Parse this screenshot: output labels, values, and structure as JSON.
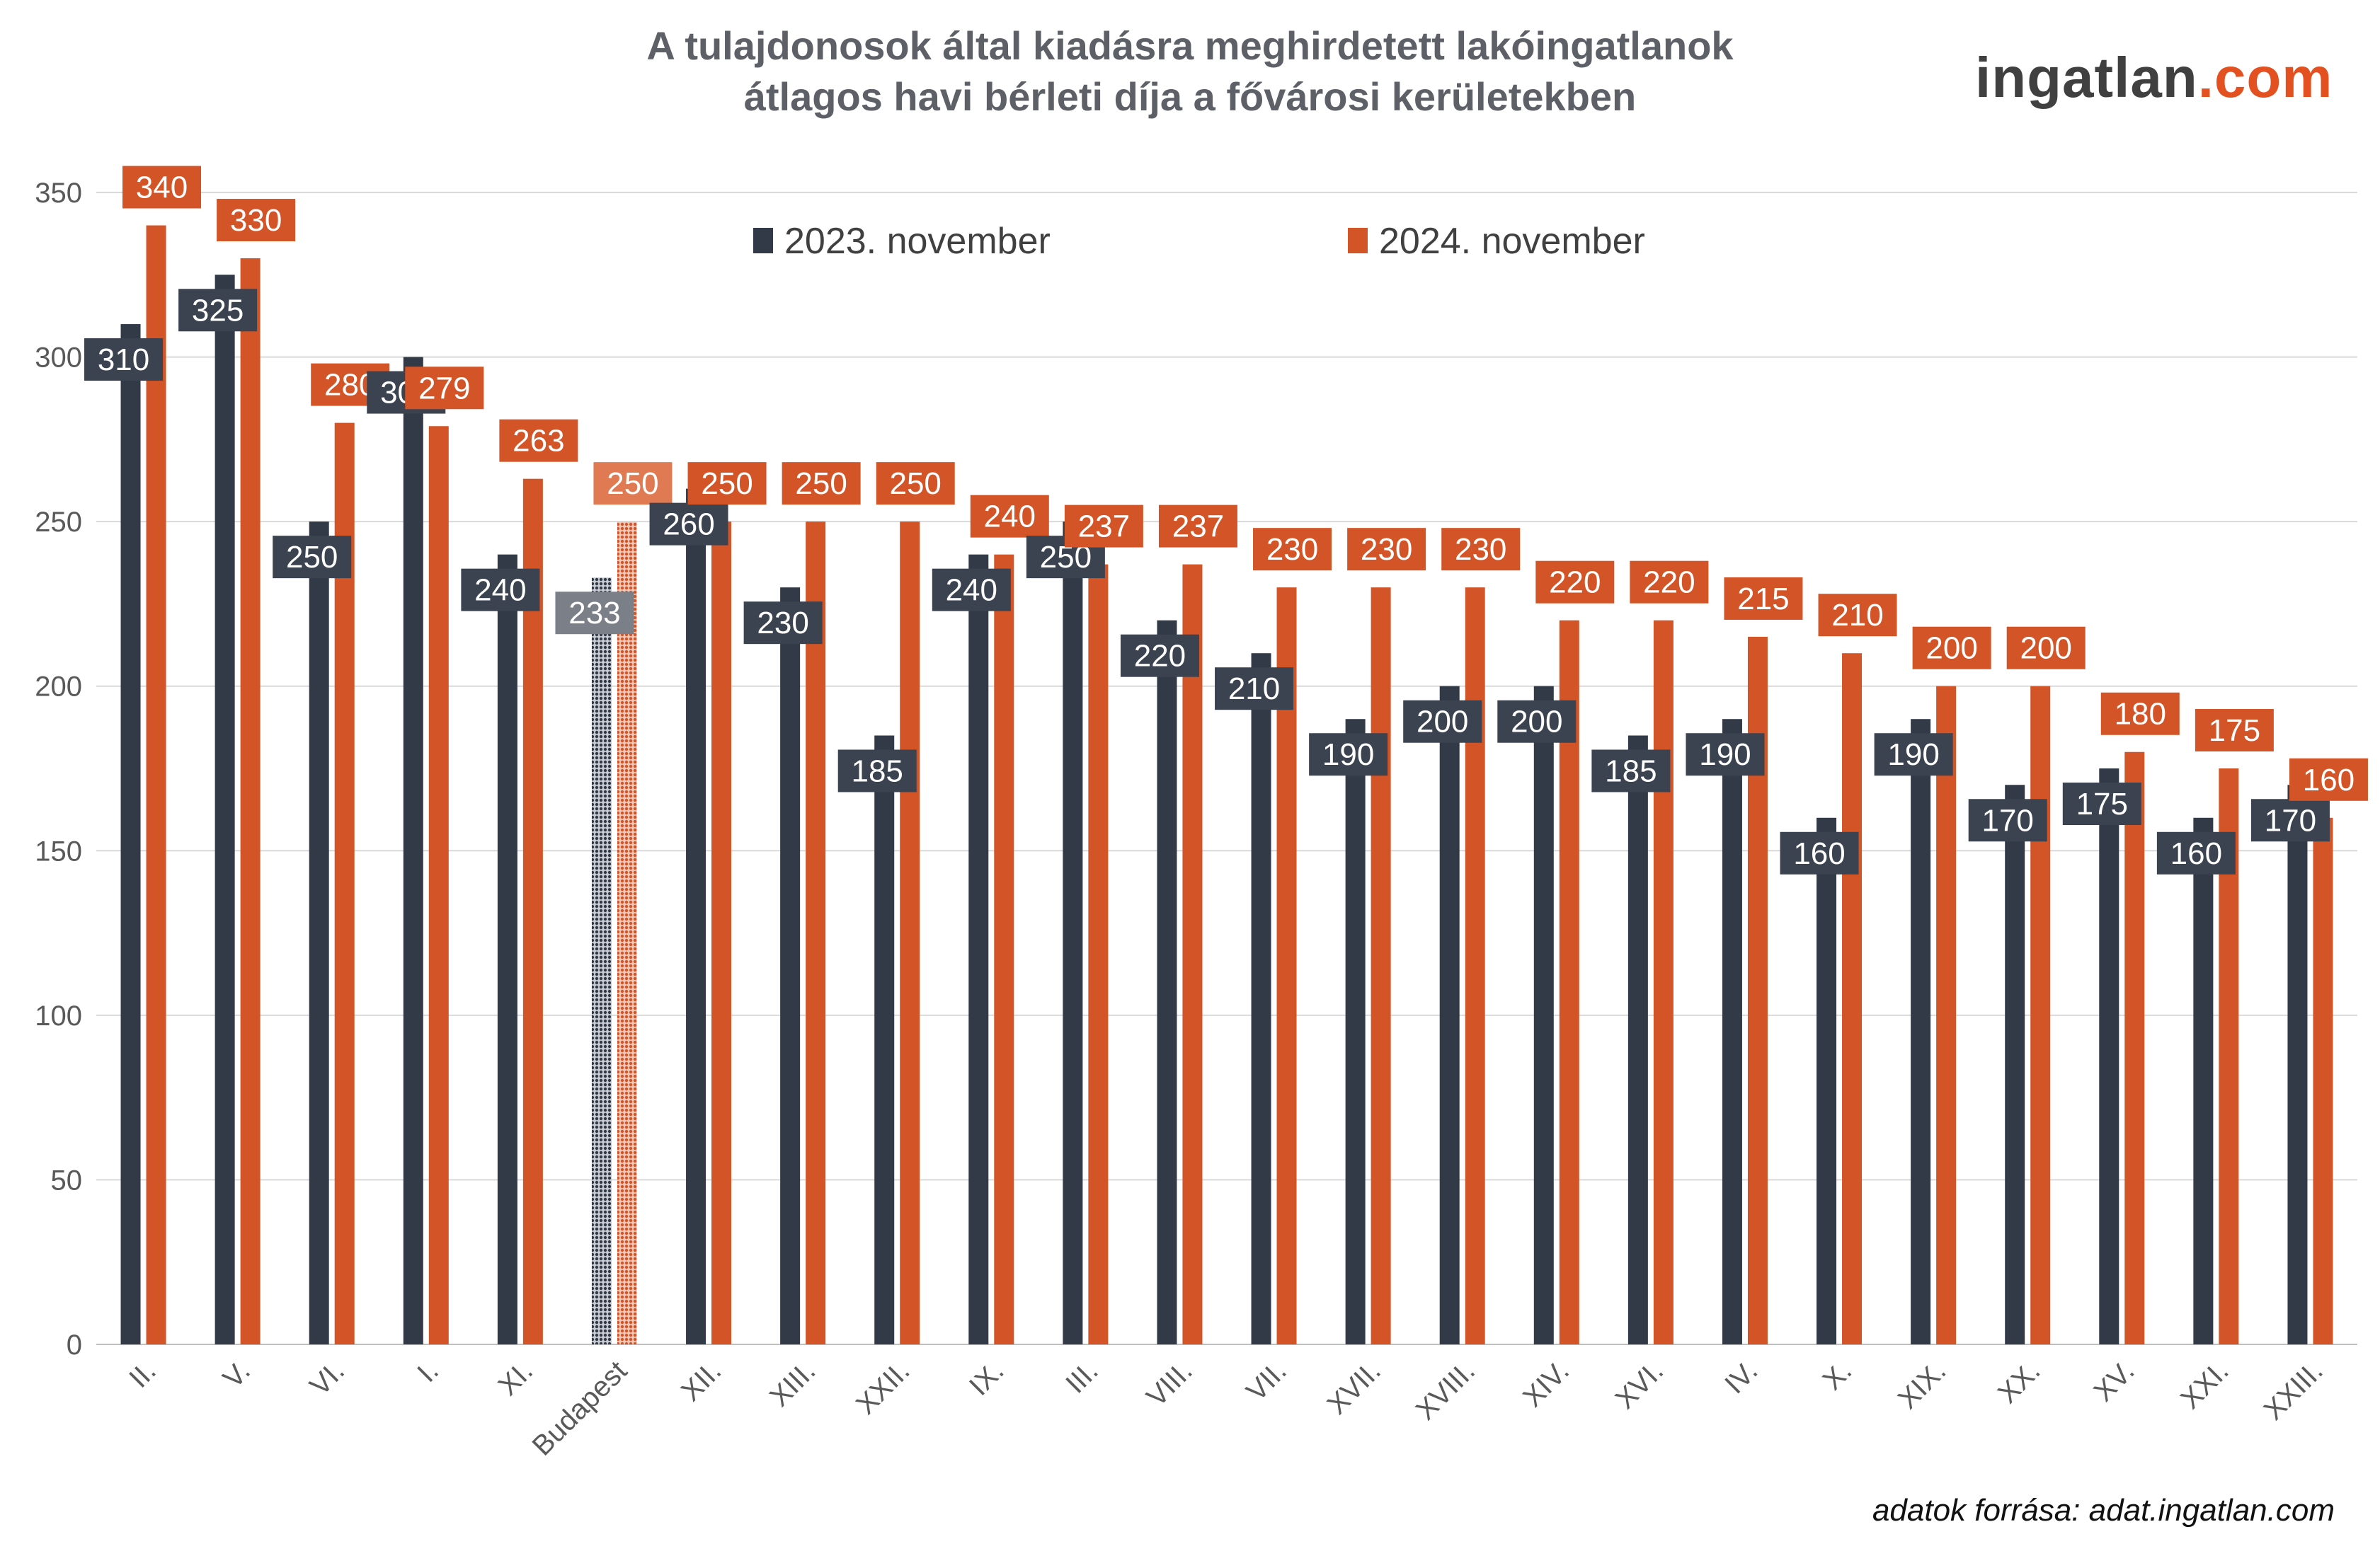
{
  "title_line1": "A tulajdonosok által kiadásra meghirdetett lakóingatlanok",
  "title_line2": "átlagos havi bérleti díja a fővárosi kerületekben",
  "logo_main": "ingatlan",
  "logo_suffix": ".com",
  "source": "adatok forrása: adat.ingatlan.com",
  "colors": {
    "series2023": "#323a48",
    "series2024": "#d35427",
    "grid": "#d9d9d9",
    "axis_text": "#595959"
  },
  "chart_data": {
    "type": "bar",
    "ylim": [
      0,
      350
    ],
    "yticks": [
      0,
      50,
      100,
      150,
      200,
      250,
      300,
      350
    ],
    "grid": true,
    "legend_position": "top-center",
    "categories": [
      "II.",
      "V.",
      "VI.",
      "I.",
      "XI.",
      "Budapest",
      "XII.",
      "XIII.",
      "XXII.",
      "IX.",
      "III.",
      "VIII.",
      "VII.",
      "XVII.",
      "XVIII.",
      "XIV.",
      "XVI.",
      "IV.",
      "X.",
      "XIX.",
      "XX.",
      "XV.",
      "XXI.",
      "XXIII."
    ],
    "highlight_category": "Budapest",
    "series": [
      {
        "name": "2023. november",
        "values": [
          310,
          325,
          250,
          300,
          240,
          233,
          260,
          230,
          185,
          240,
          250,
          220,
          210,
          190,
          200,
          200,
          185,
          190,
          160,
          190,
          170,
          175,
          160,
          170
        ]
      },
      {
        "name": "2024. november",
        "values": [
          340,
          330,
          280,
          279,
          263,
          250,
          250,
          250,
          250,
          240,
          237,
          237,
          230,
          230,
          230,
          220,
          220,
          215,
          210,
          200,
          200,
          180,
          175,
          160
        ]
      }
    ]
  }
}
